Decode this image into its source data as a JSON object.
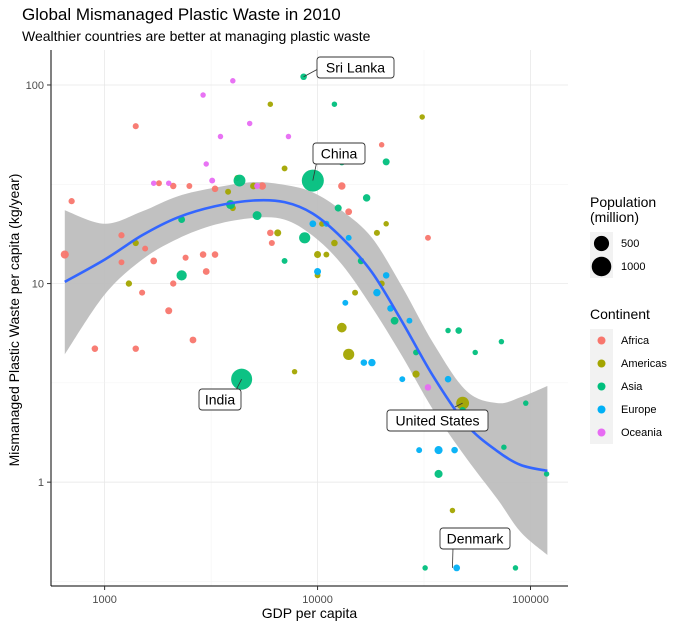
{
  "chart_data": {
    "type": "scatter",
    "title": "Global Mismanaged Plastic Waste in 2010",
    "subtitle": "Wealthier countries are better at managing plastic waste",
    "xlabel": "GDP per capita",
    "ylabel": "Mismanaged Plastic Waste per capita (kg/year)",
    "x_scale": "log10",
    "y_scale": "log10",
    "xlim": [
      560,
      150000
    ],
    "ylim": [
      0.3,
      150
    ],
    "x_ticks": [
      1000,
      10000,
      100000
    ],
    "x_tick_labels": [
      "1000",
      "10000",
      "100000"
    ],
    "y_ticks": [
      1,
      10,
      100
    ],
    "y_tick_labels": [
      "1",
      "10",
      "100"
    ],
    "grid": true,
    "legend_position": "right",
    "colors": {
      "Africa": "#F8766D",
      "Americas": "#A3A500",
      "Asia": "#00BF7D",
      "Europe": "#00B0F6",
      "Oceania": "#E76BF3",
      "smooth_line": "#3366FF",
      "ribbon": "#BEBEBE"
    },
    "size_legend": {
      "title": "Population\n(million)",
      "title_lines": [
        "Population",
        "(million)"
      ],
      "entries": [
        {
          "label": "500",
          "value": 500
        },
        {
          "label": "1000",
          "value": 1000
        }
      ]
    },
    "color_legend": {
      "title": "Continent",
      "entries": [
        "Africa",
        "Americas",
        "Asia",
        "Europe",
        "Oceania"
      ]
    },
    "annotations": [
      {
        "label": "Sri Lanka",
        "x": 8600,
        "y": 110
      },
      {
        "label": "China",
        "x": 9500,
        "y": 33
      },
      {
        "label": "India",
        "x": 4400,
        "y": 3.3
      },
      {
        "label": "United States",
        "x": 48000,
        "y": 2.5
      },
      {
        "label": "Denmark",
        "x": 43000,
        "y": 0.37
      }
    ],
    "smooth": {
      "x": [
        650,
        1000,
        1500,
        2200,
        3300,
        5000,
        7000,
        9500,
        13000,
        18000,
        25000,
        35000,
        50000,
        70000,
        90000,
        120000
      ],
      "y": [
        10.2,
        13.2,
        17.5,
        21.5,
        24.5,
        26.2,
        25.7,
        22.5,
        17,
        11.4,
        6.4,
        3.4,
        1.95,
        1.43,
        1.22,
        1.14
      ],
      "lower": [
        4.4,
        8.8,
        13.2,
        16.8,
        19.8,
        21.4,
        21,
        17.4,
        12.5,
        7.6,
        4.3,
        2.3,
        1.32,
        0.82,
        0.56,
        0.43
      ],
      "upper": [
        23.4,
        20,
        23.1,
        27.5,
        30.4,
        32.4,
        31.4,
        28.8,
        23.3,
        17,
        9.6,
        5,
        2.88,
        2.5,
        2.68,
        3.05
      ]
    },
    "series": [
      {
        "name": "Africa",
        "points": [
          {
            "x": 650,
            "y": 14,
            "pop": 60
          },
          {
            "x": 700,
            "y": 26,
            "pop": 15
          },
          {
            "x": 900,
            "y": 4.7,
            "pop": 20
          },
          {
            "x": 1200,
            "y": 17.5,
            "pop": 15
          },
          {
            "x": 1200,
            "y": 12.8,
            "pop": 10
          },
          {
            "x": 1400,
            "y": 62,
            "pop": 12
          },
          {
            "x": 1400,
            "y": 4.7,
            "pop": 18
          },
          {
            "x": 1500,
            "y": 9,
            "pop": 12
          },
          {
            "x": 1550,
            "y": 15,
            "pop": 10
          },
          {
            "x": 1700,
            "y": 13,
            "pop": 25
          },
          {
            "x": 1800,
            "y": 32,
            "pop": 10
          },
          {
            "x": 2000,
            "y": 7.3,
            "pop": 30
          },
          {
            "x": 2100,
            "y": 31,
            "pop": 18
          },
          {
            "x": 2100,
            "y": 10,
            "pop": 15
          },
          {
            "x": 2500,
            "y": 31,
            "pop": 10
          },
          {
            "x": 2400,
            "y": 13.5,
            "pop": 12
          },
          {
            "x": 2600,
            "y": 5.2,
            "pop": 25
          },
          {
            "x": 2900,
            "y": 14,
            "pop": 20
          },
          {
            "x": 3000,
            "y": 11.5,
            "pop": 25
          },
          {
            "x": 3300,
            "y": 30,
            "pop": 20
          },
          {
            "x": 3300,
            "y": 14,
            "pop": 20
          },
          {
            "x": 5500,
            "y": 31,
            "pop": 40
          },
          {
            "x": 6000,
            "y": 18,
            "pop": 20
          },
          {
            "x": 6100,
            "y": 16,
            "pop": 12
          },
          {
            "x": 13000,
            "y": 31,
            "pop": 40
          },
          {
            "x": 14000,
            "y": 23,
            "pop": 25
          },
          {
            "x": 20000,
            "y": 50,
            "pop": 5
          },
          {
            "x": 33000,
            "y": 17,
            "pop": 10
          }
        ]
      },
      {
        "name": "Americas",
        "points": [
          {
            "x": 1300,
            "y": 10,
            "pop": 15
          },
          {
            "x": 1400,
            "y": 16,
            "pop": 15
          },
          {
            "x": 3800,
            "y": 29,
            "pop": 10
          },
          {
            "x": 4000,
            "y": 24,
            "pop": 12
          },
          {
            "x": 4200,
            "y": 34,
            "pop": 10
          },
          {
            "x": 5000,
            "y": 31,
            "pop": 25
          },
          {
            "x": 6000,
            "y": 80,
            "pop": 5
          },
          {
            "x": 6500,
            "y": 18,
            "pop": 30
          },
          {
            "x": 7000,
            "y": 38,
            "pop": 10
          },
          {
            "x": 7800,
            "y": 3.6,
            "pop": 5
          },
          {
            "x": 10000,
            "y": 14,
            "pop": 30
          },
          {
            "x": 10000,
            "y": 11,
            "pop": 10
          },
          {
            "x": 10500,
            "y": 20,
            "pop": 10
          },
          {
            "x": 11000,
            "y": 14,
            "pop": 10
          },
          {
            "x": 12000,
            "y": 16,
            "pop": 20
          },
          {
            "x": 13000,
            "y": 6,
            "pop": 120
          },
          {
            "x": 14000,
            "y": 4.4,
            "pop": 200
          },
          {
            "x": 15000,
            "y": 9,
            "pop": 10
          },
          {
            "x": 19000,
            "y": 18,
            "pop": 12
          },
          {
            "x": 20000,
            "y": 10,
            "pop": 12
          },
          {
            "x": 21000,
            "y": 20,
            "pop": 5
          },
          {
            "x": 29000,
            "y": 3.5,
            "pop": 33
          },
          {
            "x": 31000,
            "y": 69,
            "pop": 5
          },
          {
            "x": 48000,
            "y": 2.5,
            "pop": 310
          },
          {
            "x": 43000,
            "y": 0.72,
            "pop": 5
          }
        ]
      },
      {
        "name": "Asia",
        "points": [
          {
            "x": 4400,
            "y": 3.3,
            "pop": 1200
          },
          {
            "x": 9500,
            "y": 33,
            "pop": 1350
          },
          {
            "x": 8600,
            "y": 110,
            "pop": 20
          },
          {
            "x": 2300,
            "y": 11,
            "pop": 150
          },
          {
            "x": 2300,
            "y": 21,
            "pop": 25
          },
          {
            "x": 4300,
            "y": 33,
            "pop": 240
          },
          {
            "x": 3900,
            "y": 25,
            "pop": 90
          },
          {
            "x": 5200,
            "y": 22,
            "pop": 90
          },
          {
            "x": 7000,
            "y": 13,
            "pop": 10
          },
          {
            "x": 8700,
            "y": 17,
            "pop": 200
          },
          {
            "x": 12000,
            "y": 80,
            "pop": 5
          },
          {
            "x": 13000,
            "y": 41,
            "pop": 30
          },
          {
            "x": 12500,
            "y": 24,
            "pop": 30
          },
          {
            "x": 17000,
            "y": 27,
            "pop": 40
          },
          {
            "x": 16000,
            "y": 13,
            "pop": 20
          },
          {
            "x": 21000,
            "y": 41,
            "pop": 30
          },
          {
            "x": 23000,
            "y": 6.5,
            "pop": 50
          },
          {
            "x": 29000,
            "y": 4.5,
            "pop": 10
          },
          {
            "x": 37000,
            "y": 1.1,
            "pop": 60
          },
          {
            "x": 41000,
            "y": 5.8,
            "pop": 5
          },
          {
            "x": 46000,
            "y": 5.8,
            "pop": 20
          },
          {
            "x": 48000,
            "y": 2.3,
            "pop": 20
          },
          {
            "x": 55000,
            "y": 4.5,
            "pop": 5
          },
          {
            "x": 60000,
            "y": 1.9,
            "pop": 5
          },
          {
            "x": 75000,
            "y": 1.5,
            "pop": 5
          },
          {
            "x": 73000,
            "y": 5.1,
            "pop": 5
          },
          {
            "x": 95000,
            "y": 2.5,
            "pop": 5
          },
          {
            "x": 119000,
            "y": 1.1,
            "pop": 5
          },
          {
            "x": 32000,
            "y": 0.37,
            "pop": 5
          },
          {
            "x": 85000,
            "y": 0.37,
            "pop": 5
          }
        ]
      },
      {
        "name": "Europe",
        "points": [
          {
            "x": 9500,
            "y": 20,
            "pop": 25
          },
          {
            "x": 10000,
            "y": 11.5,
            "pop": 30
          },
          {
            "x": 11000,
            "y": 20,
            "pop": 12
          },
          {
            "x": 13500,
            "y": 8,
            "pop": 10
          },
          {
            "x": 14000,
            "y": 17,
            "pop": 10
          },
          {
            "x": 16500,
            "y": 4,
            "pop": 20
          },
          {
            "x": 18000,
            "y": 4,
            "pop": 40
          },
          {
            "x": 19000,
            "y": 9,
            "pop": 40
          },
          {
            "x": 21000,
            "y": 11,
            "pop": 20
          },
          {
            "x": 22000,
            "y": 7.5,
            "pop": 20
          },
          {
            "x": 25000,
            "y": 3.3,
            "pop": 10
          },
          {
            "x": 27000,
            "y": 6.5,
            "pop": 10
          },
          {
            "x": 30000,
            "y": 1.45,
            "pop": 10
          },
          {
            "x": 32000,
            "y": 2.1,
            "pop": 40
          },
          {
            "x": 35000,
            "y": 2.2,
            "pop": 60
          },
          {
            "x": 37000,
            "y": 1.45,
            "pop": 60
          },
          {
            "x": 38000,
            "y": 2.1,
            "pop": 80
          },
          {
            "x": 41000,
            "y": 3.3,
            "pop": 20
          },
          {
            "x": 44000,
            "y": 1.45,
            "pop": 20
          },
          {
            "x": 46000,
            "y": 2.1,
            "pop": 10
          },
          {
            "x": 45000,
            "y": 0.37,
            "pop": 25
          },
          {
            "x": 57000,
            "y": 2.2,
            "pop": 10
          }
        ]
      },
      {
        "name": "Oceania",
        "points": [
          {
            "x": 1700,
            "y": 32,
            "pop": 5
          },
          {
            "x": 2000,
            "y": 32,
            "pop": 5
          },
          {
            "x": 2900,
            "y": 89,
            "pop": 5
          },
          {
            "x": 3000,
            "y": 40,
            "pop": 5
          },
          {
            "x": 3200,
            "y": 33,
            "pop": 10
          },
          {
            "x": 3500,
            "y": 55,
            "pop": 5
          },
          {
            "x": 4000,
            "y": 105,
            "pop": 5
          },
          {
            "x": 4800,
            "y": 64,
            "pop": 5
          },
          {
            "x": 5200,
            "y": 31,
            "pop": 10
          },
          {
            "x": 7300,
            "y": 55,
            "pop": 5
          },
          {
            "x": 33000,
            "y": 3,
            "pop": 20
          }
        ]
      }
    ]
  }
}
